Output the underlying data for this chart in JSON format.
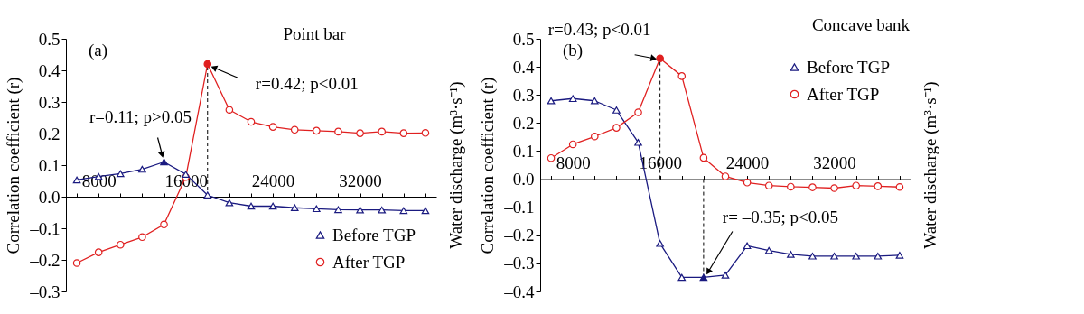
{
  "chart_data": [
    {
      "type": "line",
      "title": "Point bar",
      "ylabel": "Correlation coefficient (r)",
      "y2label": "Water discharge (m³·s⁻¹)",
      "x": [
        6000,
        8000,
        10000,
        12000,
        14000,
        16000,
        18000,
        20000,
        22000,
        24000,
        26000,
        28000,
        30000,
        32000,
        34000,
        36000,
        38000
      ],
      "series": [
        {
          "name": "Before TGP",
          "color": "#1a1a80",
          "marker": "triangle",
          "values": [
            0.053,
            0.064,
            0.073,
            0.087,
            0.11,
            0.071,
            0.005,
            -0.019,
            -0.03,
            -0.03,
            -0.035,
            -0.038,
            -0.041,
            -0.042,
            -0.042,
            -0.044,
            -0.044
          ]
        },
        {
          "name": "After TGP",
          "color": "#e02020",
          "marker": "circle",
          "values": [
            -0.21,
            -0.176,
            -0.152,
            -0.128,
            -0.088,
            0.062,
            0.42,
            0.275,
            0.237,
            0.221,
            0.212,
            0.209,
            0.206,
            0.201,
            0.206,
            0.201,
            0.202
          ]
        }
      ],
      "xlim": [
        5000,
        39000
      ],
      "xticks": [
        {
          "value": 6000,
          "label": null
        },
        8000,
        {
          "value": 10000,
          "label": null
        },
        {
          "value": 12000,
          "label": null
        },
        {
          "value": 14000,
          "label": null
        },
        16000,
        {
          "value": 18000,
          "label": null
        },
        {
          "value": 20000,
          "label": null
        },
        {
          "value": 22000,
          "label": null
        },
        24000,
        {
          "value": 26000,
          "label": null
        },
        {
          "value": 28000,
          "label": null
        },
        {
          "value": 30000,
          "label": null
        },
        32000,
        {
          "value": 34000,
          "label": null
        },
        {
          "value": 36000,
          "label": null
        },
        {
          "value": 38000,
          "label": null
        }
      ],
      "ylim": [
        -0.3,
        0.5
      ],
      "yticks": [
        {
          "value": -0.3,
          "label": "–0.3"
        },
        {
          "value": -0.2,
          "label": "–0.2"
        },
        {
          "value": -0.1,
          "label": "–0.1"
        },
        {
          "value": 0,
          "label": "0.0"
        },
        0.1,
        0.2,
        0.3,
        0.4,
        0.5
      ],
      "ref_lines": [
        {
          "axis": "x",
          "value": 18000,
          "line_style": "dashed",
          "color": "#000000"
        }
      ],
      "annotations": [
        "(a)",
        {
          "text": "r=0.42; p<0.01",
          "x": 18000,
          "y": 0.42
        },
        {
          "text": "r=0.11; p>0.05",
          "x": 14000,
          "y": 0.11
        }
      ],
      "legend": "bottom right",
      "grid": false,
      "line_style": "solid"
    },
    {
      "type": "line",
      "title": "Concave bank",
      "ylabel": "Correlation coefficient (r)",
      "y2label": "Water discharge (m³·s⁻¹)",
      "x": [
        6000,
        8000,
        10000,
        12000,
        14000,
        16000,
        18000,
        20000,
        22000,
        24000,
        26000,
        28000,
        30000,
        32000,
        34000,
        36000,
        38000
      ],
      "series": [
        {
          "name": "Before TGP",
          "color": "#1a1a80",
          "marker": "triangle",
          "values": [
            0.279,
            0.287,
            0.279,
            0.246,
            0.131,
            -0.229,
            -0.35,
            -0.35,
            -0.342,
            -0.237,
            -0.254,
            -0.268,
            -0.274,
            -0.274,
            -0.274,
            -0.274,
            -0.271
          ]
        },
        {
          "name": "After TGP",
          "color": "#e02020",
          "marker": "circle",
          "values": [
            0.075,
            0.124,
            0.152,
            0.183,
            0.238,
            0.43,
            0.367,
            0.076,
            0.01,
            -0.012,
            -0.023,
            -0.027,
            -0.029,
            -0.032,
            -0.023,
            -0.025,
            -0.028
          ]
        }
      ],
      "xlim": [
        5000,
        39000
      ],
      "xticks": [
        {
          "value": 6000,
          "label": null
        },
        8000,
        {
          "value": 10000,
          "label": null
        },
        {
          "value": 12000,
          "label": null
        },
        {
          "value": 14000,
          "label": null
        },
        16000,
        {
          "value": 18000,
          "label": null
        },
        {
          "value": 20000,
          "label": null
        },
        {
          "value": 22000,
          "label": null
        },
        24000,
        {
          "value": 26000,
          "label": null
        },
        {
          "value": 28000,
          "label": null
        },
        {
          "value": 30000,
          "label": null
        },
        32000,
        {
          "value": 34000,
          "label": null
        },
        {
          "value": 36000,
          "label": null
        },
        {
          "value": 38000,
          "label": null
        }
      ],
      "ylim": [
        -0.4,
        0.5
      ],
      "yticks": [
        {
          "value": -0.4,
          "label": "–0.4"
        },
        {
          "value": -0.3,
          "label": "–0.3"
        },
        {
          "value": -0.2,
          "label": "–0.2"
        },
        {
          "value": -0.1,
          "label": "–0.1"
        },
        {
          "value": 0,
          "label": "0.0"
        },
        0.1,
        0.2,
        0.3,
        0.4,
        0.5
      ],
      "ref_lines": [
        {
          "axis": "x",
          "value": 16000,
          "line_style": "dashed",
          "color": "#000000"
        },
        {
          "axis": "x",
          "value": 20000,
          "line_style": "dashed",
          "color": "#000000"
        }
      ],
      "annotations": [
        "(b)",
        {
          "text": "r=0.43; p<0.01",
          "x": 16000,
          "y": 0.43
        },
        {
          "text": "r= –0.35; p<0.05",
          "x": 20000,
          "y": -0.35
        }
      ],
      "legend": "top right",
      "grid": false,
      "line_style": "solid"
    }
  ]
}
